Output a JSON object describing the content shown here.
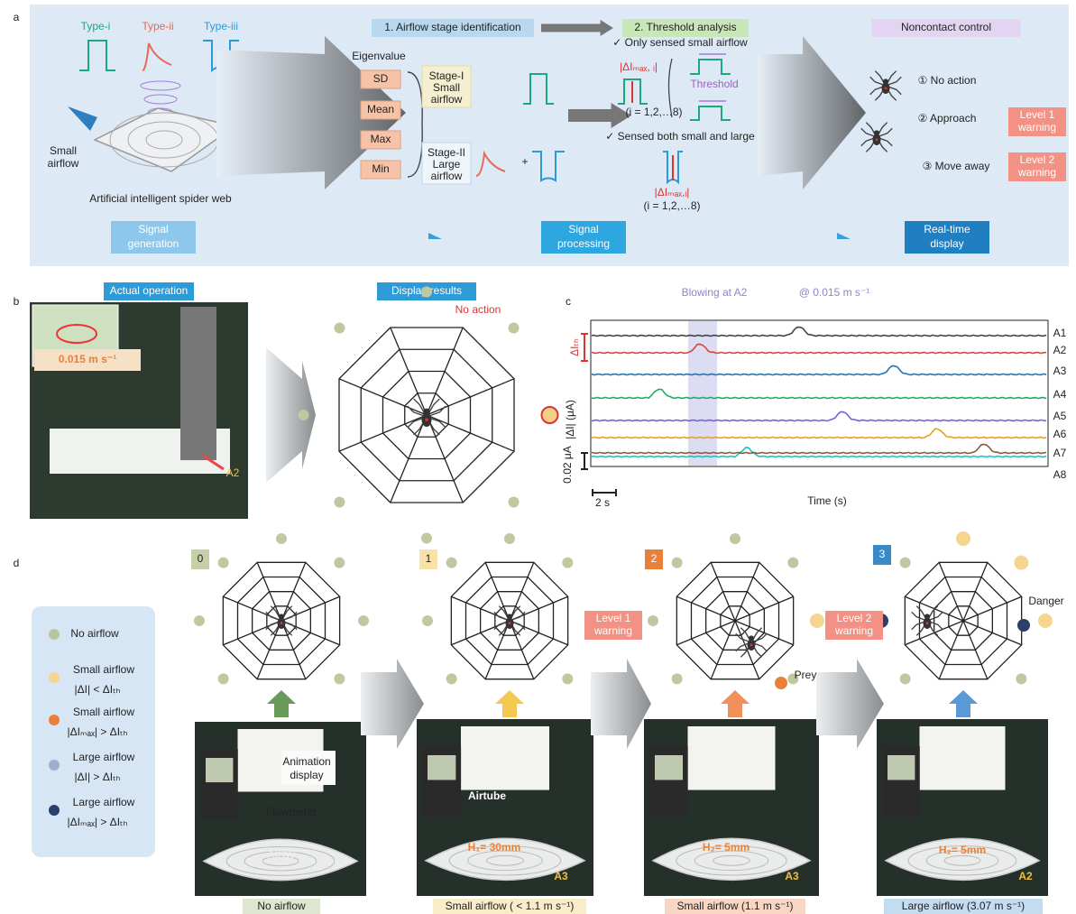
{
  "panel_a": {
    "label": "a",
    "types": [
      "Type-i",
      "Type-ii",
      "Type-iii"
    ],
    "small_airflow": [
      "Small",
      "airflow"
    ],
    "large_airflow": [
      "Large",
      "airflow"
    ],
    "web_caption": "Artificial intelligent spider web",
    "steps": [
      [
        "Signal",
        "generation"
      ],
      [
        "Signal",
        "processing"
      ],
      [
        "Real-time",
        "display"
      ]
    ],
    "stage_identification": "1. Airflow stage identification",
    "threshold_analysis": "2. Threshold analysis",
    "noncontact_control": "Noncontact control",
    "eigenvalue": "Eigenvalue",
    "eigenvalues": [
      "SD",
      "Mean",
      "Max",
      "Min"
    ],
    "stage_1": [
      "Stage-I",
      "Small",
      "airflow"
    ],
    "stage_2": [
      "Stage-II",
      "Large",
      "airflow"
    ],
    "plus": "+",
    "only_small": "✓ Only sensed small airflow",
    "both": "✓ Sensed both small and large airflow",
    "delta_max_i": "|ΔIₘₐₓ, ᵢ|",
    "index_note": "(i = 1,2,…8)",
    "threshold": "Threshold",
    "delta_max_i_2": "|ΔIₘₐₓ,ᵢ|",
    "index_note_2": "(i = 1,2,…8)",
    "cases": [
      "①",
      "②",
      "③"
    ],
    "actions": [
      "① No action",
      "② Approach",
      "③ Move away"
    ],
    "warnings": [
      [
        "Level 1",
        "warning"
      ],
      [
        "Level 2",
        "warning"
      ]
    ]
  },
  "panel_b": {
    "label": "b",
    "actual_operation": "Actual operation",
    "speed": "0.015 m s⁻¹",
    "sensor": "A2",
    "display_results": "Display results",
    "status": "No action"
  },
  "panel_c": {
    "label": "c",
    "blowing": "Blowing at A2",
    "speed": "@ 0.015 m s⁻¹",
    "threshold": "ΔIₜₕ",
    "y_label": "|ΔI| (μA)",
    "scale_y": "0.02 μA",
    "scale_x": "2 s",
    "x_label": "Time (s)",
    "channels": [
      "A1",
      "A2",
      "A3",
      "A4",
      "A5",
      "A6",
      "A7",
      "A8"
    ]
  },
  "panel_d": {
    "label": "d",
    "legend": [
      {
        "name": "No airflow"
      },
      {
        "name": "Small airflow",
        "rule": "|ΔI| < ΔIₜₕ"
      },
      {
        "name": "Small airflow",
        "rule": "|ΔIₘₐₓ| > ΔIₜₕ"
      },
      {
        "name": "Large airflow",
        "rule": "|ΔI| > ΔIₜₕ"
      },
      {
        "name": "Large airflow",
        "rule": "|ΔIₘₐₓ| > ΔIₜₕ"
      }
    ],
    "levels": [
      "0",
      "1",
      "2",
      "3"
    ],
    "captions": [
      "No airflow",
      "Small airflow ( < 1.1 m s⁻¹)",
      "Small airflow (1.1 m s⁻¹)",
      "Large airflow   (3.07 m s⁻¹)"
    ],
    "warnings": [
      [
        "Level 1",
        "warning"
      ],
      [
        "Level 2",
        "warning"
      ]
    ],
    "photo_labels": [
      "Animation",
      "display",
      "Flowmeter",
      "AISW",
      "Airtube",
      "H₁= 30mm",
      "A3",
      "H₂= 5mm",
      "A3",
      "H₂= 5mm",
      "A2"
    ],
    "prey": "Prey",
    "danger": "Danger"
  }
}
